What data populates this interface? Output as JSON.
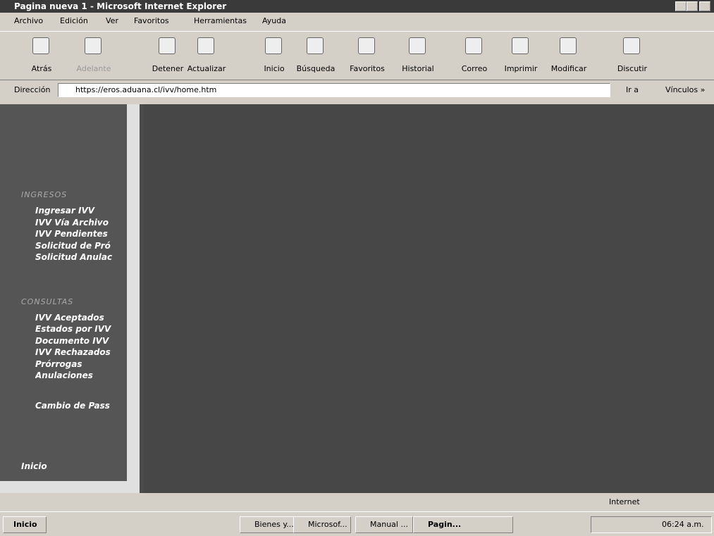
{
  "window": {
    "title": "Pagina nueva 1 - Microsoft Internet Explorer"
  },
  "menu": [
    "Archivo",
    "Edición",
    "Ver",
    "Favoritos",
    "Herramientas",
    "Ayuda"
  ],
  "toolbar": [
    "Atrás",
    "Adelante",
    "Detener",
    "Actualizar",
    "Inicio",
    "Búsqueda",
    "Favoritos",
    "Historial",
    "Correo",
    "Imprimir",
    "Modificar",
    "Discutir"
  ],
  "address": {
    "label": "Dirección",
    "url": "https://eros.aduana.cl/ivv/home.htm",
    "go": "Ir a",
    "links": "Vínculos »"
  },
  "sidebar": {
    "sections": [
      {
        "heading": "INGRESOS",
        "items": [
          "Ingresar IVV",
          "IVV Vía Archivo",
          "IVV Pendientes",
          "Solicitud de Pró",
          "Solicitud Anulac"
        ]
      },
      {
        "heading": "CONSULTAS",
        "items": [
          "IVV Aceptados",
          "Estados por IVV",
          "Documento IVV",
          "IVV Rechazados",
          "Prórrogas",
          "Anulaciones"
        ]
      }
    ],
    "extra": [
      "Cambio de Pass",
      "Inicio"
    ]
  },
  "status": {
    "zone": "Internet"
  },
  "taskbar": {
    "start": "Inicio",
    "tasks": [
      "Bienes y...",
      "Microsof...",
      "Manual ...",
      "Pagin..."
    ],
    "clock": "06:24 a.m."
  }
}
